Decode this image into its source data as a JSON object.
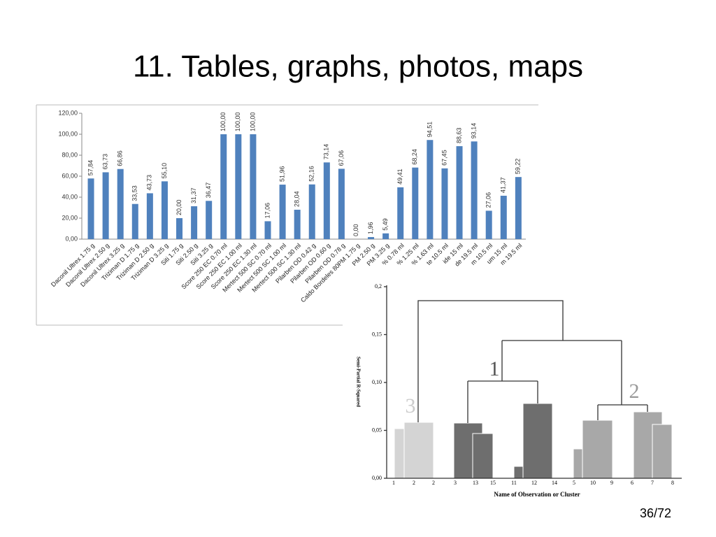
{
  "slide": {
    "title": "11. Tables, graphs, photos, maps",
    "page_number": "36/72"
  },
  "chart_data": {
    "type": "bar",
    "color": "#4f81bd",
    "categories": [
      "Daconil Ultrex 1.75 g",
      "Daconil Ultrex 2.50 g",
      "Daconil Ultrex 3.25 g",
      "Triziman D 1.75 g",
      "Triziman D 2.50 g",
      "Triziman D 3.25 g",
      "Siti 1.75 g",
      "Siti 2.50 g",
      "Siti 3.25 g",
      "Score 250 EC 0.70 ml",
      "Score 250 EC 1.00 ml",
      "Score 250 EC 1.30 ml",
      "Mertect 500 SC 0.70 ml",
      "Mertect 500 SC 1.00 ml",
      "Mertect 500 SC 1.30 ml",
      "Pilarben OD 0.42 g",
      "Pilarben OD 0.60 g",
      "Pilarben OD 0.78 g",
      "Caldo Bordeles 80PM 1.75 g",
      "PM 2.50 g",
      "PM 3.25 g",
      "% 0.78 ml",
      "% 1.25 ml",
      "% 1.63 ml",
      "te 10.5 ml",
      "ide 15 ml",
      "de 19.5 ml",
      "m 10.5 ml",
      "um 15 ml",
      "m 19.5 ml"
    ],
    "values": [
      57.84,
      63.73,
      66.86,
      33.53,
      43.73,
      55.1,
      20.0,
      31.37,
      36.47,
      100.0,
      100.0,
      100.0,
      17.06,
      51.96,
      28.04,
      52.16,
      73.14,
      67.06,
      0.0,
      1.96,
      5.49,
      49.41,
      68.24,
      94.51,
      67.45,
      88.63,
      93.14,
      27.06,
      41.37,
      59.22
    ],
    "value_labels": [
      "57,84",
      "63,73",
      "66,86",
      "33,53",
      "43,73",
      "55,10",
      "20,00",
      "31,37",
      "36,47",
      "100,00",
      "100,00",
      "100,00",
      "17,06",
      "51,96",
      "28,04",
      "52,16",
      "73,14",
      "67,06",
      "0,00",
      "1,96",
      "5,49",
      "49,41",
      "68,24",
      "94,51",
      "67,45",
      "88,63",
      "93,14",
      "27,06",
      "41,37",
      "59,22"
    ],
    "ylim": [
      0,
      120
    ],
    "yticks": [
      {
        "value": 0,
        "label": "0,00"
      },
      {
        "value": 20,
        "label": "20,00"
      },
      {
        "value": 40,
        "label": "40,00"
      },
      {
        "value": 60,
        "label": "60,00"
      },
      {
        "value": 80,
        "label": "80,00"
      },
      {
        "value": 100,
        "label": "100,00"
      },
      {
        "value": 120,
        "label": "120,00"
      }
    ]
  },
  "dendrogram": {
    "ylabel": "Semi-Partial R-Squared",
    "xlabel": "Name of Observation or Cluster",
    "ylim": [
      0,
      0.2
    ],
    "yticks": [
      {
        "value": 0,
        "label": "0,00"
      },
      {
        "value": 0.05,
        "label": "0,05"
      },
      {
        "value": 0.1,
        "label": "0,10"
      },
      {
        "value": 0.15,
        "label": "0,15"
      },
      {
        "value": 0.2,
        "label": "0,2"
      }
    ],
    "leaves": [
      "1",
      "2",
      "2",
      "3",
      "13",
      "15",
      "11",
      "12",
      "14",
      "5",
      "10",
      "9",
      "6",
      "7",
      "8"
    ],
    "cluster_labels": [
      "1",
      "2",
      "3"
    ]
  }
}
